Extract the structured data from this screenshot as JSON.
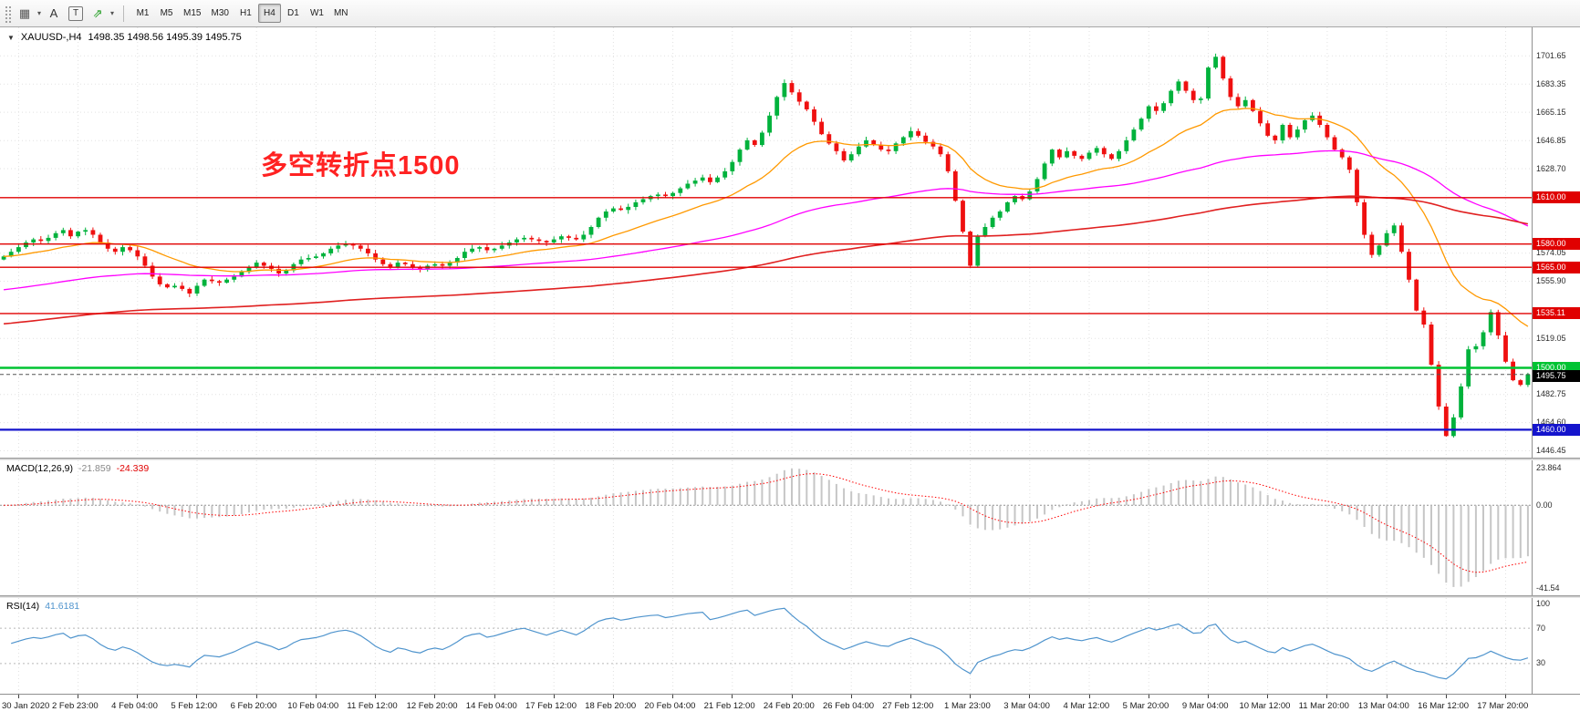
{
  "toolbar": {
    "tools": [
      {
        "name": "crosshair-grid-tool",
        "glyph": "▦",
        "caret": true,
        "boxed": false,
        "color": "#555555"
      },
      {
        "name": "text-label-tool",
        "glyph": "A",
        "caret": false,
        "boxed": false,
        "color": "#333333"
      },
      {
        "name": "text-frame-tool",
        "glyph": "T",
        "caret": false,
        "boxed": true,
        "color": "#333333"
      },
      {
        "name": "indicator-arrow-tool",
        "glyph": "⇗",
        "caret": true,
        "boxed": false,
        "color": "#1a9a1a"
      }
    ],
    "timeframes": [
      "M1",
      "M5",
      "M15",
      "M30",
      "H1",
      "H4",
      "D1",
      "W1",
      "MN"
    ],
    "selected_timeframe": "H4"
  },
  "chart": {
    "symbol_period": "XAUUSD-,H4",
    "ohlc": "1498.35 1498.56 1495.39 1495.75",
    "annotation": "多空转折点1500",
    "annotation_color": "#ff2222"
  },
  "price_axis": {
    "plain_labels": [
      1701.65,
      1683.35,
      1665.15,
      1646.85,
      1628.7,
      1574.05,
      1555.9,
      1519.05,
      1482.75,
      1464.6,
      1446.45
    ],
    "lines": [
      {
        "label": "1610.00",
        "price": 1610.0,
        "color": "#e00000",
        "line_width": 1.4
      },
      {
        "label": "1580.00",
        "price": 1580.0,
        "color": "#e00000",
        "line_width": 1.4
      },
      {
        "label": "1565.00",
        "price": 1565.0,
        "color": "#e00000",
        "line_width": 1.4
      },
      {
        "label": "1535.11",
        "price": 1535.11,
        "color": "#e00000",
        "line_width": 1.4
      },
      {
        "label": "1500.00",
        "price": 1500.0,
        "color": "#00c332",
        "line_width": 2.6
      },
      {
        "label": "1460.00",
        "price": 1460.0,
        "color": "#1414cc",
        "line_width": 2.2
      }
    ],
    "current_price": {
      "label": "1495.75",
      "price": 1495.75,
      "color": "#000000"
    }
  },
  "chart_data": {
    "type": "candlestick",
    "symbol": "XAUUSD",
    "timeframe": "H4",
    "price_range": [
      1442,
      1720
    ],
    "up_color": "#00b23c",
    "down_color": "#ef1010",
    "closes": [
      1572,
      1575,
      1578,
      1581,
      1583,
      1582,
      1584,
      1587,
      1589,
      1585,
      1588,
      1589,
      1586,
      1581,
      1577,
      1575,
      1578,
      1576,
      1572,
      1566,
      1559,
      1554,
      1552,
      1553,
      1551,
      1548,
      1553,
      1557,
      1556,
      1555,
      1557,
      1559,
      1562,
      1565,
      1568,
      1566,
      1564,
      1561,
      1563,
      1567,
      1570,
      1571,
      1572,
      1574,
      1577,
      1579,
      1580,
      1579,
      1577,
      1574,
      1570,
      1567,
      1565,
      1568,
      1567,
      1565,
      1564,
      1566,
      1567,
      1566,
      1568,
      1571,
      1575,
      1577,
      1578,
      1576,
      1577,
      1579,
      1581,
      1583,
      1584,
      1583,
      1582,
      1581,
      1583,
      1585,
      1584,
      1583,
      1586,
      1591,
      1597,
      1601,
      1603,
      1602,
      1604,
      1607,
      1609,
      1611,
      1612,
      1611,
      1613,
      1616,
      1619,
      1621,
      1623,
      1620,
      1623,
      1627,
      1633,
      1641,
      1647,
      1644,
      1652,
      1663,
      1675,
      1684,
      1678,
      1672,
      1667,
      1659,
      1651,
      1645,
      1640,
      1634,
      1638,
      1643,
      1647,
      1644,
      1641,
      1640,
      1645,
      1649,
      1653,
      1650,
      1646,
      1643,
      1638,
      1627,
      1608,
      1588,
      1566,
      1585,
      1591,
      1597,
      1601,
      1607,
      1611,
      1609,
      1614,
      1622,
      1632,
      1641,
      1636,
      1640,
      1637,
      1635,
      1639,
      1642,
      1638,
      1635,
      1640,
      1647,
      1654,
      1661,
      1669,
      1666,
      1671,
      1679,
      1685,
      1679,
      1673,
      1674,
      1694,
      1701,
      1687,
      1675,
      1669,
      1673,
      1666,
      1658,
      1650,
      1647,
      1657,
      1649,
      1654,
      1660,
      1663,
      1657,
      1649,
      1641,
      1636,
      1628,
      1607,
      1586,
      1573,
      1579,
      1587,
      1592,
      1575,
      1557,
      1537,
      1528,
      1502,
      1475,
      1456,
      1468,
      1488,
      1512,
      1514,
      1523,
      1536,
      1521,
      1504,
      1492,
      1489,
      1495.75
    ],
    "moving_averages": [
      {
        "name": "ma-fast",
        "period": 21,
        "color": "#ff9900",
        "width": 1.3,
        "seed": null
      },
      {
        "name": "ma-medium",
        "period": 89,
        "color": "#ff00ff",
        "width": 1.3,
        "seed": 1550
      },
      {
        "name": "ma-slow",
        "period": 200,
        "color": "#e02020",
        "width": 1.6,
        "seed": 1528
      }
    ],
    "time_labels": [
      "30 Jan 2020",
      "2 Feb 23:00",
      "4 Feb 04:00",
      "5 Feb 12:00",
      "6 Feb 20:00",
      "10 Feb 04:00",
      "11 Feb 12:00",
      "12 Feb 20:00",
      "14 Feb 04:00",
      "17 Feb 12:00",
      "18 Feb 20:00",
      "20 Feb 04:00",
      "21 Feb 12:00",
      "24 Feb 20:00",
      "26 Feb 04:00",
      "27 Feb 12:00",
      "1 Mar 23:00",
      "3 Mar 04:00",
      "4 Mar 12:00",
      "5 Mar 20:00",
      "9 Mar 04:00",
      "10 Mar 12:00",
      "11 Mar 20:00",
      "13 Mar 04:00",
      "16 Mar 12:00",
      "17 Mar 20:00"
    ]
  },
  "macd": {
    "title": "MACD(12,26,9)",
    "value1": "-21.859",
    "value2": "-24.339",
    "fast": 12,
    "slow": 26,
    "signal": 9,
    "histogram_color": "#c6c6c6",
    "signal_color": "#ff0000",
    "axis_labels": [
      {
        "value": 23.864,
        "text": "23.864"
      },
      {
        "value": 0,
        "text": "0.00"
      },
      {
        "value": -41.54,
        "text": "-41.54"
      }
    ]
  },
  "rsi": {
    "title": "RSI(14)",
    "value": "41.6181",
    "period": 14,
    "line_color": "#4f94cd",
    "levels": [
      70,
      30
    ],
    "scale_max": 104,
    "scale_min": -4,
    "axis_labels": [
      {
        "value": 100,
        "text": "100"
      },
      {
        "value": 70,
        "text": "70"
      },
      {
        "value": 30,
        "text": "30"
      }
    ]
  }
}
